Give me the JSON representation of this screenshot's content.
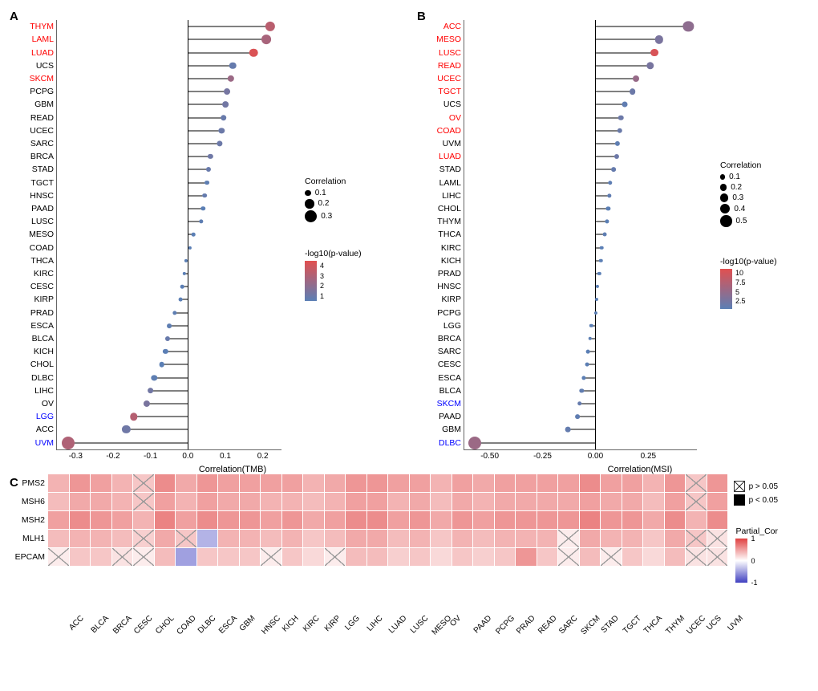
{
  "panelA": {
    "label": "A",
    "xTitle": "Correlation(TMB)",
    "xlim": [
      -0.35,
      0.25
    ],
    "xticks": [
      -0.3,
      -0.2,
      -0.1,
      0.0,
      0.1,
      0.2
    ],
    "plotWidth": 280,
    "plotHeight": 535,
    "rowHeight": 16.2,
    "colors": {
      "highPos": "#ff0000",
      "highNeg": "#0000ff",
      "normal": "#000000"
    },
    "sizeLegend": {
      "title": "Correlation",
      "values": [
        0.1,
        0.2,
        0.3
      ]
    },
    "colorLegend": {
      "title": "-log10(p-value)",
      "min": 0.5,
      "max": 4.5,
      "ticks": [
        1,
        2,
        3,
        4
      ],
      "low": "#5b7fb5",
      "high": "#e15050"
    },
    "items": [
      {
        "name": "THYM",
        "corr": 0.22,
        "neglogp": 3.3,
        "hl": "red"
      },
      {
        "name": "LAML",
        "corr": 0.21,
        "neglogp": 2.8,
        "hl": "red"
      },
      {
        "name": "LUAD",
        "corr": 0.175,
        "neglogp": 4.3,
        "hl": "red"
      },
      {
        "name": "UCS",
        "corr": 0.12,
        "neglogp": 0.8,
        "hl": "no"
      },
      {
        "name": "SKCM",
        "corr": 0.115,
        "neglogp": 2.4,
        "hl": "red"
      },
      {
        "name": "PCPG",
        "corr": 0.105,
        "neglogp": 1.3,
        "hl": "no"
      },
      {
        "name": "GBM",
        "corr": 0.1,
        "neglogp": 1.2,
        "hl": "no"
      },
      {
        "name": "READ",
        "corr": 0.095,
        "neglogp": 0.9,
        "hl": "no"
      },
      {
        "name": "UCEC",
        "corr": 0.09,
        "neglogp": 1.0,
        "hl": "no"
      },
      {
        "name": "SARC",
        "corr": 0.085,
        "neglogp": 1.0,
        "hl": "no"
      },
      {
        "name": "BRCA",
        "corr": 0.06,
        "neglogp": 1.1,
        "hl": "no"
      },
      {
        "name": "STAD",
        "corr": 0.055,
        "neglogp": 0.9,
        "hl": "no"
      },
      {
        "name": "TGCT",
        "corr": 0.05,
        "neglogp": 0.6,
        "hl": "no"
      },
      {
        "name": "HNSC",
        "corr": 0.045,
        "neglogp": 0.8,
        "hl": "no"
      },
      {
        "name": "PAAD",
        "corr": 0.04,
        "neglogp": 0.5,
        "hl": "no"
      },
      {
        "name": "LUSC",
        "corr": 0.035,
        "neglogp": 0.6,
        "hl": "no"
      },
      {
        "name": "MESO",
        "corr": 0.015,
        "neglogp": 0.3,
        "hl": "no"
      },
      {
        "name": "COAD",
        "corr": 0.005,
        "neglogp": 0.3,
        "hl": "no"
      },
      {
        "name": "THCA",
        "corr": -0.005,
        "neglogp": 0.3,
        "hl": "no"
      },
      {
        "name": "KIRC",
        "corr": -0.01,
        "neglogp": 0.3,
        "hl": "no"
      },
      {
        "name": "CESC",
        "corr": -0.015,
        "neglogp": 0.3,
        "hl": "no"
      },
      {
        "name": "KIRP",
        "corr": -0.02,
        "neglogp": 0.3,
        "hl": "no"
      },
      {
        "name": "PRAD",
        "corr": -0.035,
        "neglogp": 0.6,
        "hl": "no"
      },
      {
        "name": "ESCA",
        "corr": -0.05,
        "neglogp": 0.6,
        "hl": "no"
      },
      {
        "name": "BLCA",
        "corr": -0.055,
        "neglogp": 0.9,
        "hl": "no"
      },
      {
        "name": "KICH",
        "corr": -0.06,
        "neglogp": 0.5,
        "hl": "no"
      },
      {
        "name": "CHOL",
        "corr": -0.07,
        "neglogp": 0.5,
        "hl": "no"
      },
      {
        "name": "DLBC",
        "corr": -0.09,
        "neglogp": 0.6,
        "hl": "no"
      },
      {
        "name": "LIHC",
        "corr": -0.1,
        "neglogp": 1.2,
        "hl": "no"
      },
      {
        "name": "OV",
        "corr": -0.11,
        "neglogp": 1.4,
        "hl": "no"
      },
      {
        "name": "LGG",
        "corr": -0.145,
        "neglogp": 3.2,
        "hl": "blue"
      },
      {
        "name": "ACC",
        "corr": -0.165,
        "neglogp": 1.1,
        "hl": "no"
      },
      {
        "name": "UVM",
        "corr": -0.32,
        "neglogp": 3.0,
        "hl": "blue"
      }
    ]
  },
  "panelB": {
    "label": "B",
    "xTitle": "Correlation(MSI)",
    "xlim": [
      -0.62,
      0.48
    ],
    "xticks": [
      -0.5,
      -0.25,
      0.0,
      0.25
    ],
    "plotWidth": 290,
    "plotHeight": 535,
    "rowHeight": 16.2,
    "sizeLegend": {
      "title": "Correlation",
      "values": [
        0.1,
        0.2,
        0.3,
        0.4,
        0.5
      ]
    },
    "colorLegend": {
      "title": "-log10(p-value)",
      "min": 0.5,
      "max": 11,
      "ticks": [
        2.5,
        5.0,
        7.5,
        10.0
      ],
      "low": "#5b7fb5",
      "high": "#e15050"
    },
    "items": [
      {
        "name": "ACC",
        "corr": 0.44,
        "neglogp": 4.5,
        "hl": "red"
      },
      {
        "name": "MESO",
        "corr": 0.3,
        "neglogp": 2.9,
        "hl": "red"
      },
      {
        "name": "LUSC",
        "corr": 0.28,
        "neglogp": 10.3,
        "hl": "red"
      },
      {
        "name": "READ",
        "corr": 0.26,
        "neglogp": 2.8,
        "hl": "red"
      },
      {
        "name": "UCEC",
        "corr": 0.19,
        "neglogp": 5.2,
        "hl": "red"
      },
      {
        "name": "TGCT",
        "corr": 0.175,
        "neglogp": 1.8,
        "hl": "red"
      },
      {
        "name": "UCS",
        "corr": 0.14,
        "neglogp": 0.9,
        "hl": "no"
      },
      {
        "name": "OV",
        "corr": 0.12,
        "neglogp": 1.8,
        "hl": "red"
      },
      {
        "name": "COAD",
        "corr": 0.115,
        "neglogp": 1.7,
        "hl": "red"
      },
      {
        "name": "UVM",
        "corr": 0.105,
        "neglogp": 0.8,
        "hl": "no"
      },
      {
        "name": "LUAD",
        "corr": 0.1,
        "neglogp": 1.9,
        "hl": "red"
      },
      {
        "name": "STAD",
        "corr": 0.085,
        "neglogp": 1.3,
        "hl": "no"
      },
      {
        "name": "LAML",
        "corr": 0.07,
        "neglogp": 0.7,
        "hl": "no"
      },
      {
        "name": "LIHC",
        "corr": 0.065,
        "neglogp": 0.9,
        "hl": "no"
      },
      {
        "name": "CHOL",
        "corr": 0.06,
        "neglogp": 0.4,
        "hl": "no"
      },
      {
        "name": "THYM",
        "corr": 0.055,
        "neglogp": 0.5,
        "hl": "no"
      },
      {
        "name": "THCA",
        "corr": 0.045,
        "neglogp": 0.8,
        "hl": "no"
      },
      {
        "name": "KIRC",
        "corr": 0.03,
        "neglogp": 0.5,
        "hl": "no"
      },
      {
        "name": "KICH",
        "corr": 0.025,
        "neglogp": 0.3,
        "hl": "no"
      },
      {
        "name": "PRAD",
        "corr": 0.018,
        "neglogp": 0.3,
        "hl": "no"
      },
      {
        "name": "HNSC",
        "corr": 0.01,
        "neglogp": 0.3,
        "hl": "no"
      },
      {
        "name": "KIRP",
        "corr": 0.005,
        "neglogp": 0.2,
        "hl": "no"
      },
      {
        "name": "PCPG",
        "corr": 0.003,
        "neglogp": 0.2,
        "hl": "no"
      },
      {
        "name": "LGG",
        "corr": -0.02,
        "neglogp": 0.4,
        "hl": "no"
      },
      {
        "name": "BRCA",
        "corr": -0.025,
        "neglogp": 0.6,
        "hl": "no"
      },
      {
        "name": "SARC",
        "corr": -0.035,
        "neglogp": 0.5,
        "hl": "no"
      },
      {
        "name": "CESC",
        "corr": -0.04,
        "neglogp": 0.6,
        "hl": "no"
      },
      {
        "name": "ESCA",
        "corr": -0.055,
        "neglogp": 0.6,
        "hl": "no"
      },
      {
        "name": "BLCA",
        "corr": -0.065,
        "neglogp": 1.0,
        "hl": "no"
      },
      {
        "name": "SKCM",
        "corr": -0.075,
        "neglogp": 1.3,
        "hl": "blue"
      },
      {
        "name": "PAAD",
        "corr": -0.085,
        "neglogp": 0.9,
        "hl": "no"
      },
      {
        "name": "GBM",
        "corr": -0.13,
        "neglogp": 1.2,
        "hl": "no"
      },
      {
        "name": "DLBC",
        "corr": -0.57,
        "neglogp": 5.5,
        "hl": "blue"
      }
    ]
  },
  "panelC": {
    "label": "C",
    "rows": [
      "PMS2",
      "MSH6",
      "MSH2",
      "MLH1",
      "EPCAM"
    ],
    "cols": [
      "ACC",
      "BLCA",
      "BRCA",
      "CESC",
      "CHOL",
      "COAD",
      "DLBC",
      "ESCA",
      "GBM",
      "HNSC",
      "KICH",
      "KIRC",
      "KIRP",
      "LGG",
      "LIHC",
      "LUAD",
      "LUSC",
      "MESO",
      "OV",
      "PAAD",
      "PCPG",
      "PRAD",
      "READ",
      "SARC",
      "SKCM",
      "STAD",
      "TGCT",
      "THCA",
      "THYM",
      "UCEC",
      "UCS",
      "UVM"
    ],
    "cellWidth": 25.5,
    "cellHeight": 22,
    "colorScale": {
      "low": "#4040c0",
      "mid": "#ffffff",
      "high": "#e04040",
      "min": -1,
      "max": 1
    },
    "legend": {
      "sig": [
        {
          "symbol": "cross",
          "text": "p > 0.05"
        },
        {
          "symbol": "filled",
          "text": "p < 0.05"
        }
      ],
      "cor": {
        "title": "Partial_Cor",
        "ticks": [
          1,
          0,
          -1
        ]
      }
    },
    "cells": [
      [
        {
          "v": 0.4,
          "p": 0
        },
        {
          "v": 0.55,
          "p": 0
        },
        {
          "v": 0.5,
          "p": 0
        },
        {
          "v": 0.4,
          "p": 0
        },
        {
          "v": 0.3,
          "p": 1
        },
        {
          "v": 0.6,
          "p": 0
        },
        {
          "v": 0.45,
          "p": 0
        },
        {
          "v": 0.55,
          "p": 0
        },
        {
          "v": 0.5,
          "p": 0
        },
        {
          "v": 0.5,
          "p": 0
        },
        {
          "v": 0.5,
          "p": 0
        },
        {
          "v": 0.5,
          "p": 0
        },
        {
          "v": 0.4,
          "p": 0
        },
        {
          "v": 0.45,
          "p": 0
        },
        {
          "v": 0.55,
          "p": 0
        },
        {
          "v": 0.55,
          "p": 0
        },
        {
          "v": 0.5,
          "p": 0
        },
        {
          "v": 0.5,
          "p": 0
        },
        {
          "v": 0.4,
          "p": 0
        },
        {
          "v": 0.5,
          "p": 0
        },
        {
          "v": 0.45,
          "p": 0
        },
        {
          "v": 0.5,
          "p": 0
        },
        {
          "v": 0.5,
          "p": 0
        },
        {
          "v": 0.5,
          "p": 0
        },
        {
          "v": 0.5,
          "p": 0
        },
        {
          "v": 0.6,
          "p": 0
        },
        {
          "v": 0.5,
          "p": 0
        },
        {
          "v": 0.5,
          "p": 0
        },
        {
          "v": 0.4,
          "p": 0
        },
        {
          "v": 0.55,
          "p": 0
        },
        {
          "v": 0.3,
          "p": 1
        },
        {
          "v": 0.55,
          "p": 0
        }
      ],
      [
        {
          "v": 0.35,
          "p": 0
        },
        {
          "v": 0.45,
          "p": 0
        },
        {
          "v": 0.45,
          "p": 0
        },
        {
          "v": 0.4,
          "p": 0
        },
        {
          "v": 0.3,
          "p": 1
        },
        {
          "v": 0.5,
          "p": 0
        },
        {
          "v": 0.4,
          "p": 0
        },
        {
          "v": 0.5,
          "p": 0
        },
        {
          "v": 0.45,
          "p": 0
        },
        {
          "v": 0.45,
          "p": 0
        },
        {
          "v": 0.4,
          "p": 0
        },
        {
          "v": 0.4,
          "p": 0
        },
        {
          "v": 0.35,
          "p": 0
        },
        {
          "v": 0.4,
          "p": 0
        },
        {
          "v": 0.5,
          "p": 0
        },
        {
          "v": 0.5,
          "p": 0
        },
        {
          "v": 0.4,
          "p": 0
        },
        {
          "v": 0.45,
          "p": 0
        },
        {
          "v": 0.35,
          "p": 0
        },
        {
          "v": 0.45,
          "p": 0
        },
        {
          "v": 0.4,
          "p": 0
        },
        {
          "v": 0.45,
          "p": 0
        },
        {
          "v": 0.45,
          "p": 0
        },
        {
          "v": 0.45,
          "p": 0
        },
        {
          "v": 0.45,
          "p": 0
        },
        {
          "v": 0.5,
          "p": 0
        },
        {
          "v": 0.45,
          "p": 0
        },
        {
          "v": 0.45,
          "p": 0
        },
        {
          "v": 0.35,
          "p": 0
        },
        {
          "v": 0.5,
          "p": 0
        },
        {
          "v": 0.3,
          "p": 1
        },
        {
          "v": 0.5,
          "p": 0
        }
      ],
      [
        {
          "v": 0.5,
          "p": 0
        },
        {
          "v": 0.6,
          "p": 0
        },
        {
          "v": 0.55,
          "p": 0
        },
        {
          "v": 0.5,
          "p": 0
        },
        {
          "v": 0.4,
          "p": 0
        },
        {
          "v": 0.65,
          "p": 0
        },
        {
          "v": 0.5,
          "p": 0
        },
        {
          "v": 0.6,
          "p": 0
        },
        {
          "v": 0.55,
          "p": 0
        },
        {
          "v": 0.55,
          "p": 0
        },
        {
          "v": 0.5,
          "p": 0
        },
        {
          "v": 0.55,
          "p": 0
        },
        {
          "v": 0.45,
          "p": 0
        },
        {
          "v": 0.5,
          "p": 0
        },
        {
          "v": 0.6,
          "p": 0
        },
        {
          "v": 0.6,
          "p": 0
        },
        {
          "v": 0.5,
          "p": 0
        },
        {
          "v": 0.55,
          "p": 0
        },
        {
          "v": 0.45,
          "p": 0
        },
        {
          "v": 0.55,
          "p": 0
        },
        {
          "v": 0.5,
          "p": 0
        },
        {
          "v": 0.55,
          "p": 0
        },
        {
          "v": 0.55,
          "p": 0
        },
        {
          "v": 0.55,
          "p": 0
        },
        {
          "v": 0.55,
          "p": 0
        },
        {
          "v": 0.65,
          "p": 0
        },
        {
          "v": 0.55,
          "p": 0
        },
        {
          "v": 0.55,
          "p": 0
        },
        {
          "v": 0.45,
          "p": 0
        },
        {
          "v": 0.6,
          "p": 0
        },
        {
          "v": 0.4,
          "p": 0
        },
        {
          "v": 0.6,
          "p": 0
        }
      ],
      [
        {
          "v": 0.35,
          "p": 0
        },
        {
          "v": 0.4,
          "p": 0
        },
        {
          "v": 0.4,
          "p": 0
        },
        {
          "v": 0.35,
          "p": 0
        },
        {
          "v": 0.25,
          "p": 1
        },
        {
          "v": 0.45,
          "p": 0
        },
        {
          "v": 0.3,
          "p": 1
        },
        {
          "v": -0.4,
          "p": 0
        },
        {
          "v": 0.4,
          "p": 0
        },
        {
          "v": 0.4,
          "p": 0
        },
        {
          "v": 0.35,
          "p": 0
        },
        {
          "v": 0.4,
          "p": 0
        },
        {
          "v": 0.3,
          "p": 0
        },
        {
          "v": 0.35,
          "p": 0
        },
        {
          "v": 0.45,
          "p": 0
        },
        {
          "v": 0.45,
          "p": 0
        },
        {
          "v": 0.35,
          "p": 0
        },
        {
          "v": 0.4,
          "p": 0
        },
        {
          "v": 0.3,
          "p": 0
        },
        {
          "v": 0.4,
          "p": 0
        },
        {
          "v": 0.35,
          "p": 0
        },
        {
          "v": 0.4,
          "p": 0
        },
        {
          "v": 0.4,
          "p": 0
        },
        {
          "v": 0.4,
          "p": 0
        },
        {
          "v": 0.1,
          "p": 1
        },
        {
          "v": 0.45,
          "p": 0
        },
        {
          "v": 0.4,
          "p": 0
        },
        {
          "v": 0.4,
          "p": 0
        },
        {
          "v": 0.3,
          "p": 0
        },
        {
          "v": 0.45,
          "p": 0
        },
        {
          "v": 0.3,
          "p": 1
        },
        {
          "v": 0.15,
          "p": 1
        }
      ],
      [
        {
          "v": 0.1,
          "p": 1
        },
        {
          "v": 0.3,
          "p": 0
        },
        {
          "v": 0.3,
          "p": 0
        },
        {
          "v": 0.15,
          "p": 1
        },
        {
          "v": 0.1,
          "p": 1
        },
        {
          "v": 0.35,
          "p": 0
        },
        {
          "v": -0.5,
          "p": 0
        },
        {
          "v": 0.3,
          "p": 0
        },
        {
          "v": 0.3,
          "p": 0
        },
        {
          "v": 0.3,
          "p": 0
        },
        {
          "v": 0.1,
          "p": 1
        },
        {
          "v": 0.3,
          "p": 0
        },
        {
          "v": 0.2,
          "p": 0
        },
        {
          "v": 0.1,
          "p": 1
        },
        {
          "v": 0.35,
          "p": 0
        },
        {
          "v": 0.35,
          "p": 0
        },
        {
          "v": 0.25,
          "p": 0
        },
        {
          "v": 0.3,
          "p": 0
        },
        {
          "v": 0.2,
          "p": 0
        },
        {
          "v": 0.3,
          "p": 0
        },
        {
          "v": 0.25,
          "p": 0
        },
        {
          "v": 0.3,
          "p": 0
        },
        {
          "v": 0.55,
          "p": 0
        },
        {
          "v": 0.3,
          "p": 0
        },
        {
          "v": 0.1,
          "p": 1
        },
        {
          "v": 0.35,
          "p": 0
        },
        {
          "v": 0.1,
          "p": 1
        },
        {
          "v": 0.3,
          "p": 0
        },
        {
          "v": 0.2,
          "p": 0
        },
        {
          "v": 0.35,
          "p": 0
        },
        {
          "v": 0.15,
          "p": 1
        },
        {
          "v": 0.15,
          "p": 1
        }
      ]
    ]
  }
}
